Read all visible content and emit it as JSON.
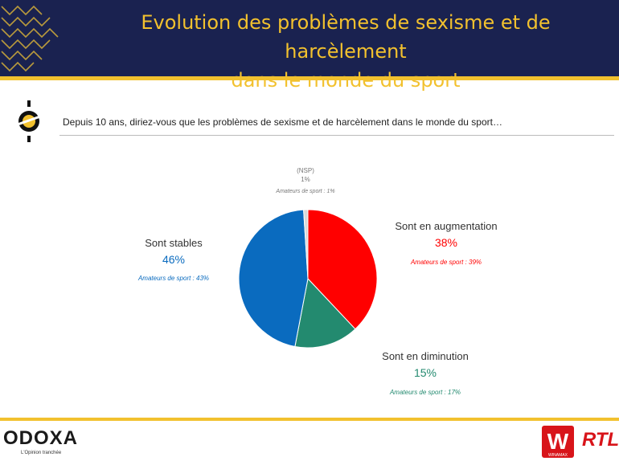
{
  "header": {
    "title_line1": "Evolution des problèmes de sexisme et de harcèlement",
    "title_line2": "dans le monde du sport"
  },
  "question": "Depuis 10 ans, diriez-vous que les problèmes de sexisme et de harcèlement dans le monde du sport…",
  "chart_data": {
    "type": "pie",
    "title": "",
    "slices": [
      {
        "label": "Sont en augmentation",
        "value": 38,
        "pct_text": "38%",
        "sub": "Amateurs de sport : 39%",
        "color": "#ff0000"
      },
      {
        "label": "Sont en diminution",
        "value": 15,
        "pct_text": "15%",
        "sub": "Amateurs de sport : 17%",
        "color": "#238a6f"
      },
      {
        "label": "Sont stables",
        "value": 46,
        "pct_text": "46%",
        "sub": "Amateurs de sport : 43%",
        "color": "#0a6bbf"
      },
      {
        "label": "(NSP)",
        "value": 1,
        "pct_text": "1%",
        "sub": "Amateurs de sport : 1%",
        "color": "#d9d9d9"
      }
    ]
  },
  "footer": {
    "brand": "ODOXA",
    "tagline": "L'Opinion tranchée",
    "partner1": "WINAMAX",
    "partner2": "RTL"
  }
}
